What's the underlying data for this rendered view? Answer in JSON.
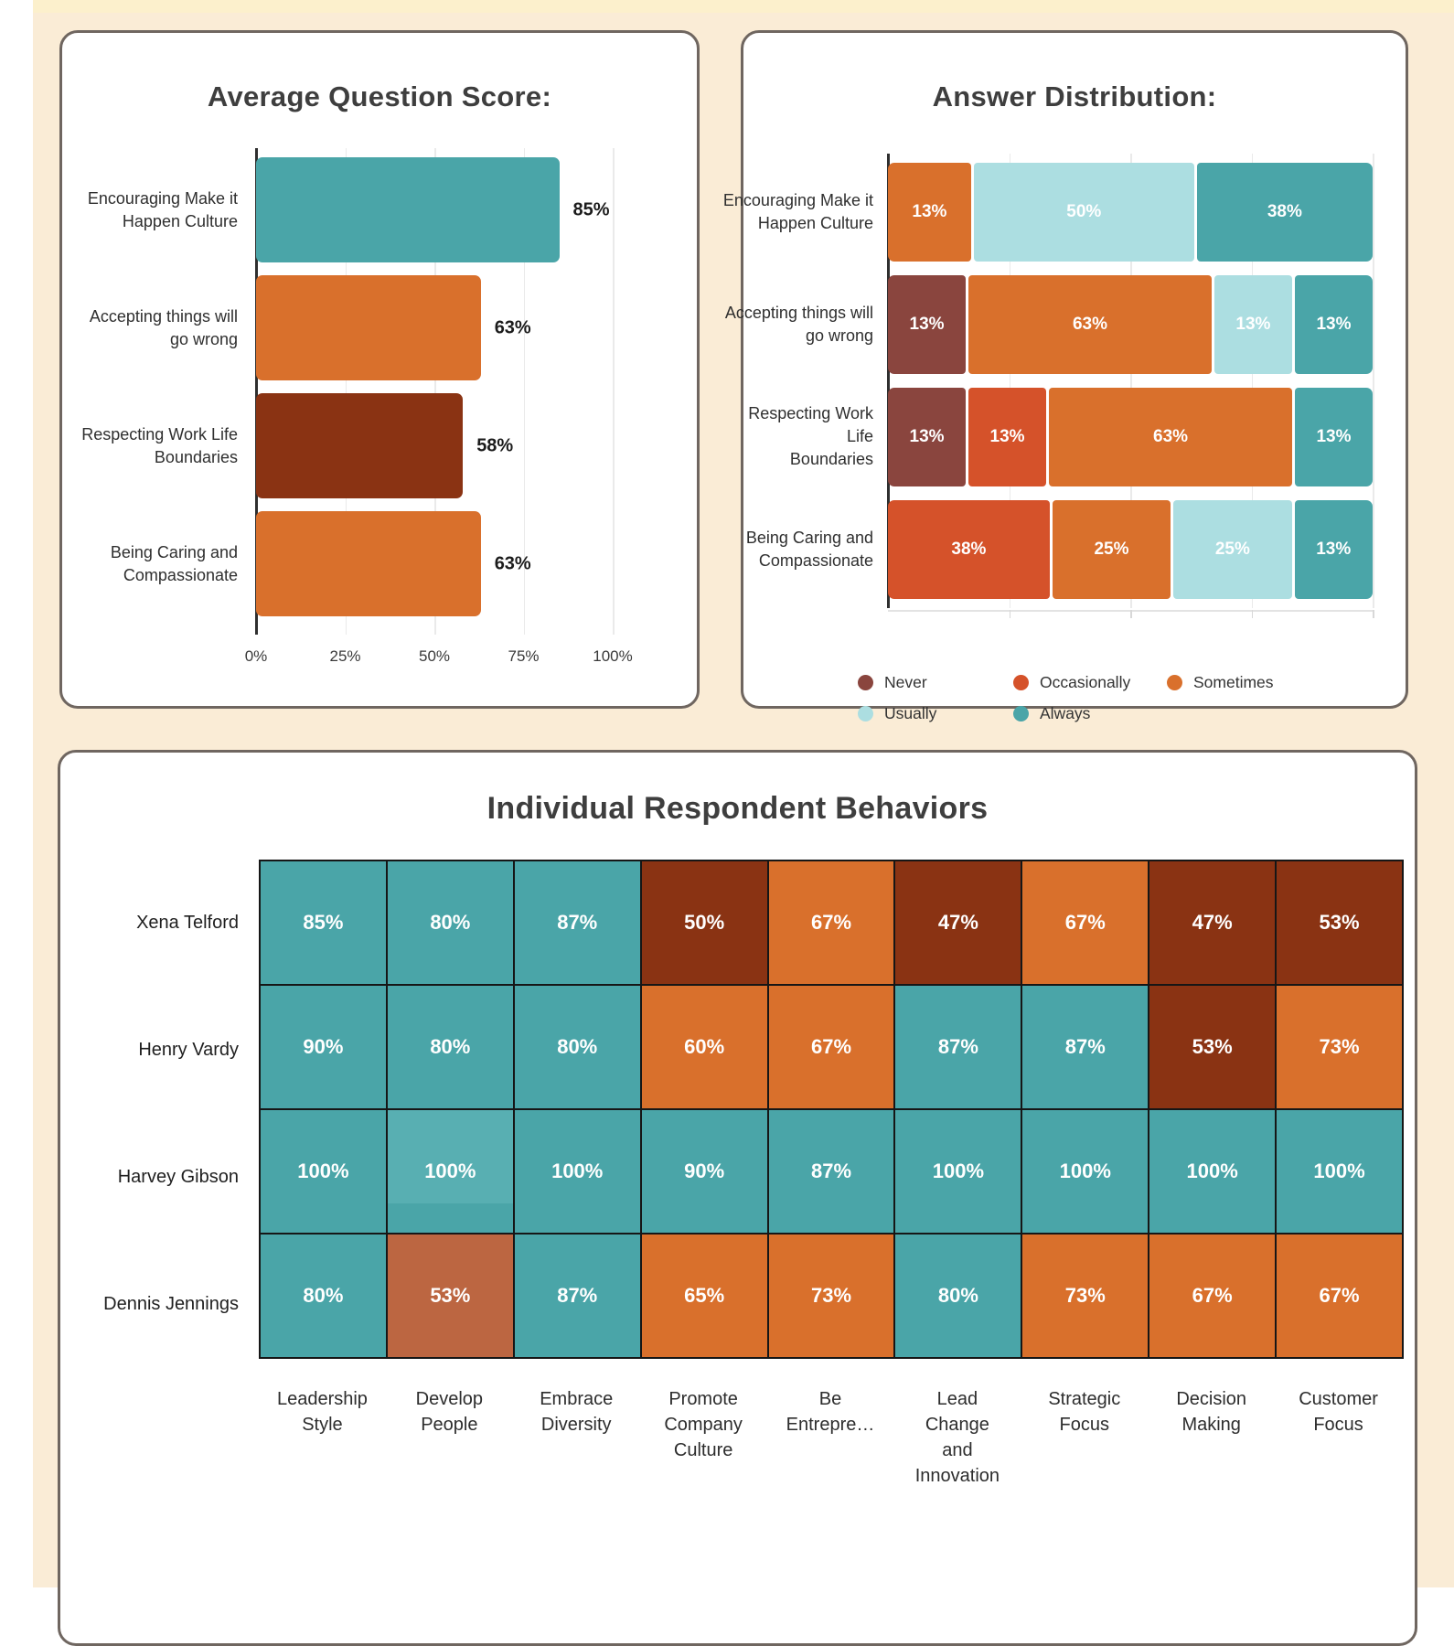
{
  "page": {
    "background": "#FAECD6",
    "top_strip": "#FCF0CC",
    "card_border": "#6F6660",
    "card_background": "#FFFFFF"
  },
  "palette": {
    "teal": "#4AA5A8",
    "teal_light": "#58AFB2",
    "orange": "#D9702C",
    "orange_red": "#D5522A",
    "rust": "#8A3313",
    "maroon": "#8A453E",
    "sienna": "#BC6641",
    "light_blue": "#ACDEE1"
  },
  "chart_data": [
    {
      "id": "average-question-score",
      "type": "bar",
      "title": "Average Question Score:",
      "categories": [
        "Encouraging Make it\nHappen Culture",
        "Accepting things will\ngo wrong",
        "Respecting Work Life\nBoundaries",
        "Being Caring and\nCompassionate"
      ],
      "values": [
        85,
        63,
        58,
        63
      ],
      "labels": [
        "85%",
        "63%",
        "58%",
        "63%"
      ],
      "colors": [
        "teal",
        "orange",
        "rust",
        "orange"
      ],
      "x_ticks": [
        "0%",
        "25%",
        "50%",
        "75%",
        "100%"
      ],
      "xlim": [
        0,
        100
      ],
      "grid": true
    },
    {
      "id": "answer-distribution",
      "type": "stacked-bar",
      "title": "Answer Distribution:",
      "categories": [
        "Encouraging Make it\nHappen Culture",
        "Accepting things will\ngo wrong",
        "Respecting Work Life\nBoundaries",
        "Being Caring and\nCompassionate"
      ],
      "legend": [
        {
          "label": "Never",
          "color": "maroon"
        },
        {
          "label": "Occasionally",
          "color": "orange_red"
        },
        {
          "label": "Sometimes",
          "color": "orange"
        },
        {
          "label": "Usually",
          "color": "light_blue"
        },
        {
          "label": "Always",
          "color": "teal"
        }
      ],
      "rows": [
        [
          {
            "series": "Sometimes",
            "value": 13,
            "label": "13%"
          },
          {
            "series": "Usually",
            "value": 50,
            "label": "50%"
          },
          {
            "series": "Always",
            "value": 38,
            "label": "38%"
          }
        ],
        [
          {
            "series": "Never",
            "value": 13,
            "label": "13%"
          },
          {
            "series": "Sometimes",
            "value": 63,
            "label": "63%"
          },
          {
            "series": "Usually",
            "value": 13,
            "label": "13%"
          },
          {
            "series": "Always",
            "value": 13,
            "label": "13%"
          }
        ],
        [
          {
            "series": "Never",
            "value": 13,
            "label": "13%"
          },
          {
            "series": "Occasionally",
            "value": 13,
            "label": "13%"
          },
          {
            "series": "Sometimes",
            "value": 63,
            "label": "63%"
          },
          {
            "series": "Always",
            "value": 13,
            "label": "13%"
          }
        ],
        [
          {
            "series": "Occasionally",
            "value": 38,
            "label": "38%"
          },
          {
            "series": "Sometimes",
            "value": 25,
            "label": "25%"
          },
          {
            "series": "Usually",
            "value": 25,
            "label": "25%"
          },
          {
            "series": "Always",
            "value": 13,
            "label": "13%"
          }
        ]
      ],
      "xlim": [
        0,
        100
      ],
      "grid": true,
      "legend_position": "bottom"
    },
    {
      "id": "individual-respondent-behaviors",
      "type": "heatmap",
      "title": "Individual Respondent Behaviors",
      "row_labels": [
        "Xena Telford",
        "Henry Vardy",
        "Harvey Gibson",
        "Dennis Jennings"
      ],
      "col_labels": [
        "Leadership\nStyle",
        "Develop\nPeople",
        "Embrace\nDiversity",
        "Promote\nCompany\nCulture",
        "Be\nEntrepre…",
        "Lead\nChange\nand\nInnovation",
        "Strategic\nFocus",
        "Decision\nMaking",
        "Customer\nFocus"
      ],
      "values": [
        [
          85,
          80,
          87,
          50,
          67,
          47,
          67,
          47,
          53
        ],
        [
          90,
          80,
          80,
          60,
          67,
          87,
          87,
          53,
          73
        ],
        [
          100,
          100,
          100,
          90,
          87,
          100,
          100,
          100,
          100
        ],
        [
          80,
          53,
          87,
          65,
          73,
          80,
          73,
          67,
          67
        ]
      ],
      "cell_colors": [
        [
          "teal",
          "teal",
          "teal",
          "rust",
          "orange",
          "rust",
          "orange",
          "rust",
          "rust"
        ],
        [
          "teal",
          "teal",
          "teal",
          "orange",
          "orange",
          "teal",
          "teal",
          "rust",
          "orange"
        ],
        [
          "teal",
          "teal_light",
          "teal",
          "teal",
          "teal",
          "teal",
          "teal",
          "teal",
          "teal"
        ],
        [
          "teal",
          "sienna",
          "teal",
          "orange",
          "orange",
          "teal",
          "orange",
          "orange",
          "orange"
        ]
      ]
    }
  ]
}
